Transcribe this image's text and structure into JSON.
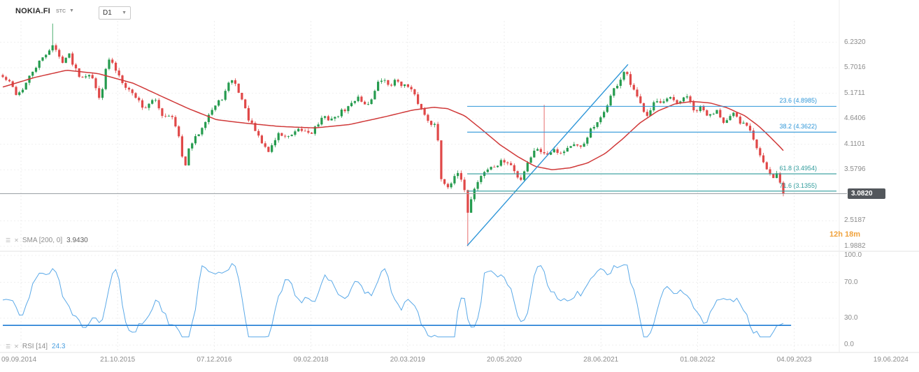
{
  "header": {
    "symbol": "NOKIA.FI",
    "symbol_type": "STC",
    "timeframe": "D1"
  },
  "countdown": "12h 18m",
  "chart_data": [
    {
      "type": "candlestick",
      "panel": "price",
      "symbol": "NOKIA.FI",
      "timeframe": "D1",
      "current_price_label": "3.0820",
      "price_ticks": [
        "6.2320",
        "5.7016",
        "5.1711",
        "4.6406",
        "4.1101",
        "3.5796",
        "2.5187",
        "1.9882"
      ],
      "x_dates": [
        "09.09.2014",
        "21.10.2015",
        "07.12.2016",
        "09.02.2018",
        "20.03.2019",
        "20.05.2020",
        "28.06.2021",
        "01.08.2022",
        "04.09.2023",
        "19.06.2024"
      ],
      "ylim": [
        1.885,
        7.11
      ],
      "grid": true,
      "candle_count": 236,
      "up_color": "#259b4e",
      "down_color": "#e04848",
      "close_anchors": [
        [
          0.0,
          5.45
        ],
        [
          0.018,
          5.15
        ],
        [
          0.035,
          5.55
        ],
        [
          0.055,
          6.05
        ],
        [
          0.063,
          6.2
        ],
        [
          0.075,
          5.75
        ],
        [
          0.085,
          5.95
        ],
        [
          0.1,
          5.45
        ],
        [
          0.112,
          5.6
        ],
        [
          0.125,
          5.15
        ],
        [
          0.135,
          5.9
        ],
        [
          0.15,
          5.55
        ],
        [
          0.165,
          5.1
        ],
        [
          0.18,
          4.85
        ],
        [
          0.195,
          5.05
        ],
        [
          0.205,
          4.7
        ],
        [
          0.215,
          4.85
        ],
        [
          0.225,
          4.35
        ],
        [
          0.232,
          3.55
        ],
        [
          0.24,
          4.05
        ],
        [
          0.255,
          4.45
        ],
        [
          0.27,
          4.8
        ],
        [
          0.285,
          5.25
        ],
        [
          0.293,
          5.5
        ],
        [
          0.305,
          5.15
        ],
        [
          0.315,
          4.7
        ],
        [
          0.33,
          4.1
        ],
        [
          0.34,
          3.92
        ],
        [
          0.352,
          4.3
        ],
        [
          0.365,
          4.2
        ],
        [
          0.38,
          4.5
        ],
        [
          0.395,
          4.35
        ],
        [
          0.41,
          4.7
        ],
        [
          0.425,
          4.55
        ],
        [
          0.44,
          4.85
        ],
        [
          0.455,
          5.1
        ],
        [
          0.465,
          4.92
        ],
        [
          0.483,
          5.5
        ],
        [
          0.495,
          5.3
        ],
        [
          0.505,
          5.45
        ],
        [
          0.52,
          5.2
        ],
        [
          0.535,
          4.9
        ],
        [
          0.548,
          4.6
        ],
        [
          0.556,
          4.48
        ],
        [
          0.561,
          3.45
        ],
        [
          0.57,
          3.3
        ],
        [
          0.58,
          3.52
        ],
        [
          0.59,
          3.22
        ],
        [
          0.595,
          2.62
        ],
        [
          0.601,
          3.05
        ],
        [
          0.61,
          3.38
        ],
        [
          0.625,
          3.6
        ],
        [
          0.64,
          3.85
        ],
        [
          0.65,
          3.7
        ],
        [
          0.662,
          3.36
        ],
        [
          0.672,
          3.75
        ],
        [
          0.685,
          3.95
        ],
        [
          0.695,
          3.85
        ],
        [
          0.705,
          4.05
        ],
        [
          0.715,
          3.9
        ],
        [
          0.73,
          4.2
        ],
        [
          0.742,
          4.05
        ],
        [
          0.752,
          4.35
        ],
        [
          0.765,
          4.6
        ],
        [
          0.778,
          5.0
        ],
        [
          0.79,
          5.4
        ],
        [
          0.797,
          5.7
        ],
        [
          0.805,
          5.35
        ],
        [
          0.815,
          5.0
        ],
        [
          0.825,
          4.8
        ],
        [
          0.835,
          5.05
        ],
        [
          0.845,
          4.85
        ],
        [
          0.855,
          5.05
        ],
        [
          0.865,
          4.9
        ],
        [
          0.875,
          5.1
        ],
        [
          0.885,
          4.8
        ],
        [
          0.895,
          4.95
        ],
        [
          0.905,
          4.7
        ],
        [
          0.915,
          4.85
        ],
        [
          0.925,
          4.6
        ],
        [
          0.935,
          4.7
        ],
        [
          0.945,
          4.45
        ],
        [
          0.955,
          4.52
        ],
        [
          0.963,
          4.2
        ],
        [
          0.972,
          3.8
        ],
        [
          0.98,
          3.55
        ],
        [
          0.988,
          3.45
        ],
        [
          0.993,
          3.62
        ],
        [
          1.0,
          3.082
        ]
      ],
      "spikes": [
        {
          "x": 0.063,
          "high": 6.62
        },
        {
          "x": 0.595,
          "low": 1.99
        },
        {
          "x": 0.694,
          "high": 4.93
        }
      ],
      "overlays": {
        "sma200": {
          "label": "SMA [200, 0]",
          "value_label": "3.9430",
          "color": "#d03939",
          "anchors": [
            [
              0.0,
              5.3
            ],
            [
              0.041,
              5.5
            ],
            [
              0.082,
              5.65
            ],
            [
              0.122,
              5.58
            ],
            [
              0.167,
              5.38
            ],
            [
              0.211,
              5.05
            ],
            [
              0.238,
              4.85
            ],
            [
              0.274,
              4.62
            ],
            [
              0.31,
              4.55
            ],
            [
              0.355,
              4.48
            ],
            [
              0.4,
              4.45
            ],
            [
              0.444,
              4.52
            ],
            [
              0.489,
              4.68
            ],
            [
              0.525,
              4.82
            ],
            [
              0.552,
              4.88
            ],
            [
              0.57,
              4.85
            ],
            [
              0.592,
              4.7
            ],
            [
              0.615,
              4.4
            ],
            [
              0.637,
              4.1
            ],
            [
              0.66,
              3.85
            ],
            [
              0.682,
              3.65
            ],
            [
              0.704,
              3.58
            ],
            [
              0.727,
              3.62
            ],
            [
              0.749,
              3.72
            ],
            [
              0.772,
              3.92
            ],
            [
              0.794,
              4.22
            ],
            [
              0.816,
              4.55
            ],
            [
              0.839,
              4.8
            ],
            [
              0.861,
              4.95
            ],
            [
              0.883,
              5.0
            ],
            [
              0.906,
              4.97
            ],
            [
              0.928,
              4.87
            ],
            [
              0.951,
              4.7
            ],
            [
              0.969,
              4.48
            ],
            [
              0.982,
              4.28
            ],
            [
              0.993,
              4.1
            ],
            [
              1.0,
              3.98
            ]
          ]
        },
        "trendline": {
          "color": "#2e96d8",
          "from": {
            "x": 0.595,
            "price": 2.0
          },
          "to": {
            "x": 0.801,
            "price": 5.77
          }
        },
        "fibonacci": {
          "start_x": 0.595,
          "levels": [
            {
              "label": "23.6 (4.8985)",
              "price": 4.8985,
              "color": "#2e96d8"
            },
            {
              "label": "38.2 (4.3622)",
              "price": 4.3622,
              "color": "#2e96d8"
            },
            {
              "label": "61.8 (3.4954)",
              "price": 3.4954,
              "color": "#2f9b9b"
            },
            {
              "label": "71.6 (3.1355)",
              "price": 3.1355,
              "color": "#2f9b9b"
            }
          ]
        },
        "current_price": 3.082
      }
    },
    {
      "type": "line",
      "panel": "rsi",
      "label": "RSI [14]",
      "current": 24.3,
      "current_label": "24.3",
      "ylim": [
        0,
        100
      ],
      "ticks": [
        "100.0",
        "70.0",
        "30.0",
        "0.0"
      ],
      "line_color": "#5aa9e8",
      "support_line": {
        "value": 22,
        "x_start": 0,
        "x_end": 1.01,
        "color": "#1f7cd4"
      }
    }
  ]
}
